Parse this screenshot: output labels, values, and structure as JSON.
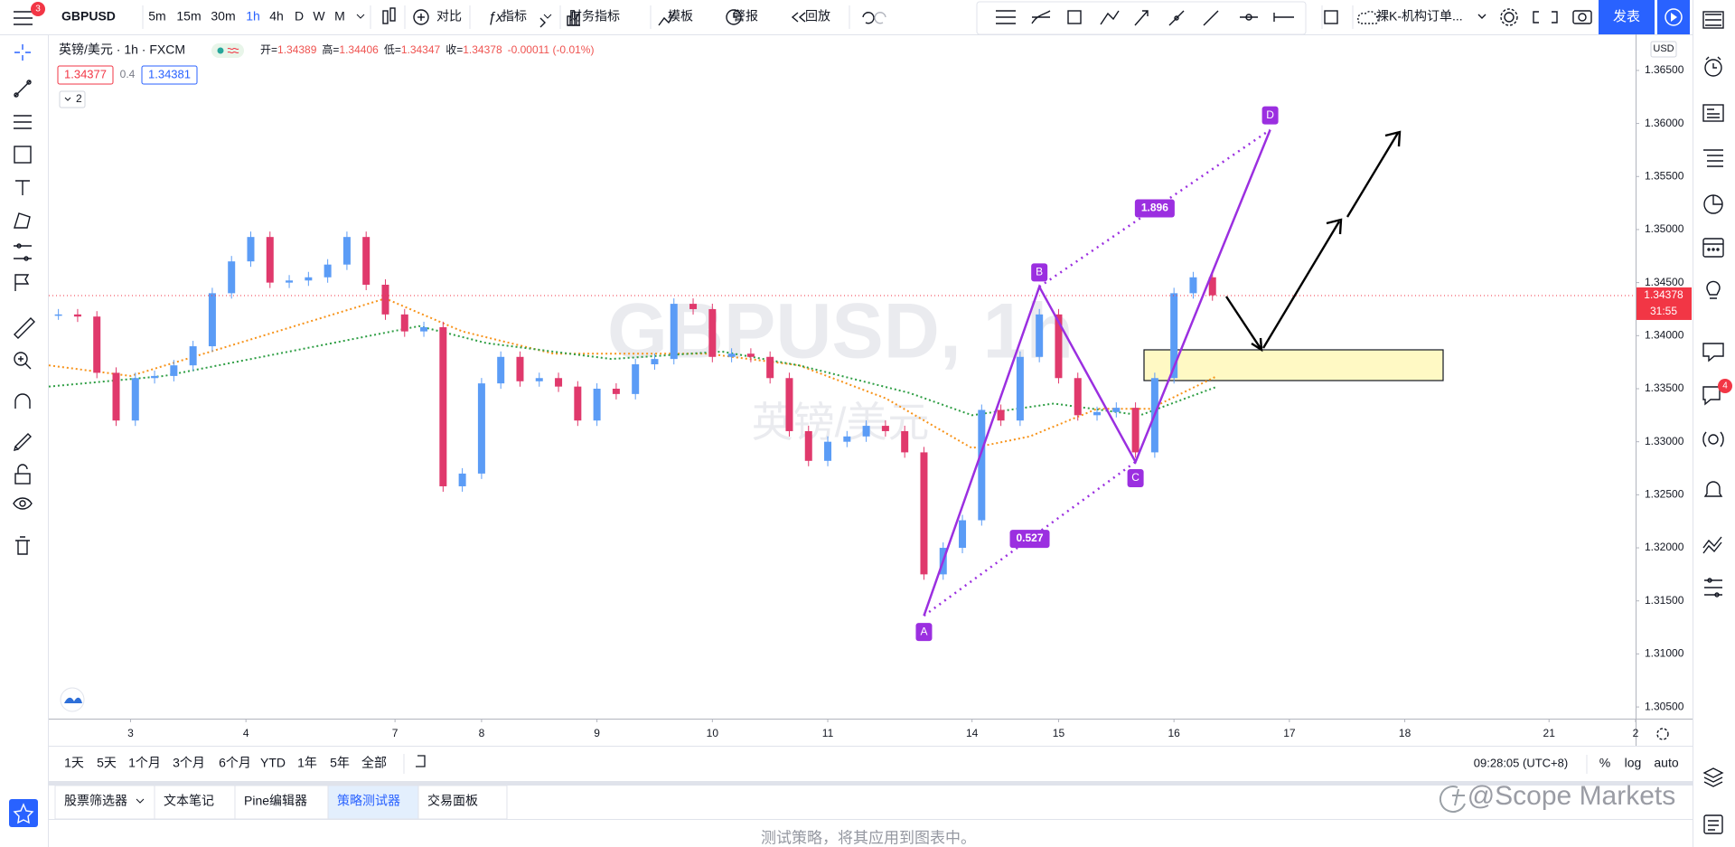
{
  "toolbar": {
    "symbol": "GBPUSD",
    "symbol_badge": "3",
    "intervals": [
      "5m",
      "15m",
      "30m",
      "1h",
      "4h",
      "D",
      "W",
      "M"
    ],
    "active_interval": 3,
    "buttons": [
      "对比",
      "指标",
      "财务指标",
      "模板",
      "警报",
      "回放"
    ],
    "layout_name": "裸K-机构订单...",
    "publish": "发表"
  },
  "legend": {
    "title": "英镑/美元 · 1h · FXCM",
    "ohlc": [
      {
        "label": "开=",
        "value": "1.34389"
      },
      {
        "label": "高=",
        "value": "1.34406"
      },
      {
        "label": "低=",
        "value": "1.34347"
      },
      {
        "label": "收=",
        "value": "1.34378"
      }
    ],
    "change": "-0.00011 (-0.01%)",
    "bid": "1.34377",
    "spread": "0.4",
    "ask": "1.34381",
    "collapsed_count": "2"
  },
  "watermark": {
    "symbol": "GBPUSD, 1h",
    "name": "英镑/美元"
  },
  "chart": {
    "type": "candlestick",
    "x": [
      2,
      6,
      10,
      14,
      18,
      22,
      26,
      30,
      34,
      38,
      42,
      46,
      50,
      54,
      58,
      62,
      66,
      70,
      74,
      78,
      82,
      86,
      90,
      94,
      98,
      102,
      106,
      110,
      114,
      118,
      122,
      126,
      130,
      134,
      138,
      142,
      146,
      150,
      154,
      158,
      162,
      166,
      170,
      174,
      178,
      182,
      186,
      190,
      194,
      198,
      202,
      206,
      210,
      214,
      218,
      222,
      226,
      230,
      234,
      238,
      242
    ],
    "closes": [
      1.342,
      1.3418,
      1.3365,
      1.332,
      1.336,
      1.3362,
      1.3372,
      1.339,
      1.344,
      1.347,
      1.3493,
      1.345,
      1.3452,
      1.3455,
      1.3467,
      1.3493,
      1.3448,
      1.342,
      1.3404,
      1.3408,
      1.3258,
      1.327,
      1.3355,
      1.338,
      1.3357,
      1.336,
      1.3352,
      1.332,
      1.335,
      1.3345,
      1.3373,
      1.3378,
      1.343,
      1.3425,
      1.338,
      1.3383,
      1.338,
      1.336,
      1.331,
      1.3282,
      1.33,
      1.3305,
      1.3315,
      1.331,
      1.329,
      1.3175,
      1.32,
      1.3226,
      1.333,
      1.332,
      1.338,
      1.342,
      1.336,
      1.3325,
      1.3328,
      1.3332,
      1.329,
      1.336,
      1.344,
      1.3455,
      1.3438
    ],
    "up_color": "#5b9cf6",
    "down_color": "#e0396c",
    "xlim": [
      0,
      330
    ],
    "ylim": [
      1.3039,
      1.3684
    ],
    "yticks": [
      {
        "value": 1.305,
        "label": "1.30500"
      },
      {
        "value": 1.31,
        "label": "1.31000"
      },
      {
        "value": 1.315,
        "label": "1.31500"
      },
      {
        "value": 1.32,
        "label": "1.32000"
      },
      {
        "value": 1.325,
        "label": "1.32500"
      },
      {
        "value": 1.33,
        "label": "1.33000"
      },
      {
        "value": 1.335,
        "label": "1.33500"
      },
      {
        "value": 1.34,
        "label": "1.34000"
      },
      {
        "value": 1.345,
        "label": "1.34500"
      },
      {
        "value": 1.35,
        "label": "1.35000"
      },
      {
        "value": 1.355,
        "label": "1.35500"
      },
      {
        "value": 1.36,
        "label": "1.36000"
      },
      {
        "value": 1.365,
        "label": "1.36500"
      }
    ],
    "xticks": [
      {
        "value": 17,
        "label": "3"
      },
      {
        "value": 41,
        "label": "4"
      },
      {
        "value": 72,
        "label": "7"
      },
      {
        "value": 90,
        "label": "8"
      },
      {
        "value": 114,
        "label": "9"
      },
      {
        "value": 138,
        "label": "10"
      },
      {
        "value": 162,
        "label": "11"
      },
      {
        "value": 192,
        "label": "14"
      },
      {
        "value": 210,
        "label": "15"
      },
      {
        "value": 234,
        "label": "16"
      },
      {
        "value": 258,
        "label": "17"
      },
      {
        "value": 282,
        "label": "18"
      },
      {
        "value": 312,
        "label": "21"
      },
      {
        "value": 330,
        "label": "2"
      }
    ],
    "currency": "USD",
    "last_price": 1.34378,
    "countdown": "31:55",
    "moving_averages": [
      {
        "color": "#f7931a",
        "x": [
          0,
          17,
          70,
          86,
          105,
          137,
          156,
          174,
          192,
          204,
          218,
          229,
          243
        ],
        "values": [
          1.3372,
          1.3362,
          1.3435,
          1.3404,
          1.3383,
          1.3383,
          1.3372,
          1.3341,
          1.3294,
          1.3305,
          1.3331,
          1.3331,
          1.3362
        ]
      },
      {
        "color": "#2e9e44",
        "x": [
          0,
          24,
          59,
          77,
          91,
          117,
          140,
          156,
          179,
          192,
          209,
          227,
          243
        ],
        "values": [
          1.3352,
          1.3362,
          1.3393,
          1.3409,
          1.3393,
          1.3378,
          1.3385,
          1.3372,
          1.3346,
          1.3325,
          1.3336,
          1.3325,
          1.3352
        ]
      }
    ],
    "pattern": {
      "color": "#9b2fe0",
      "labels": [
        "A",
        "B",
        "C",
        "D"
      ],
      "x": [
        182,
        206,
        226,
        254
      ],
      "y": [
        1.3136,
        1.3446,
        1.3281,
        1.3594
      ],
      "ratios": [
        1.896,
        0.527
      ]
    }
  },
  "time_axis": {
    "clock": "09:28:05 (UTC+8)",
    "scale_modes": [
      "%",
      "log",
      "auto"
    ]
  },
  "ranges": [
    "1天",
    "5天",
    "1个月",
    "3个月",
    "6个月",
    "YTD",
    "1年",
    "5年",
    "全部"
  ],
  "panel": {
    "tabs": [
      "股票筛选器",
      "文本笔记",
      "Pine编辑器",
      "策略测试器",
      "交易面板"
    ],
    "active_tab": 3,
    "message": "测试策略，将其应用到图表中。"
  },
  "notifications": "4",
  "brand": "@Scope Markets"
}
